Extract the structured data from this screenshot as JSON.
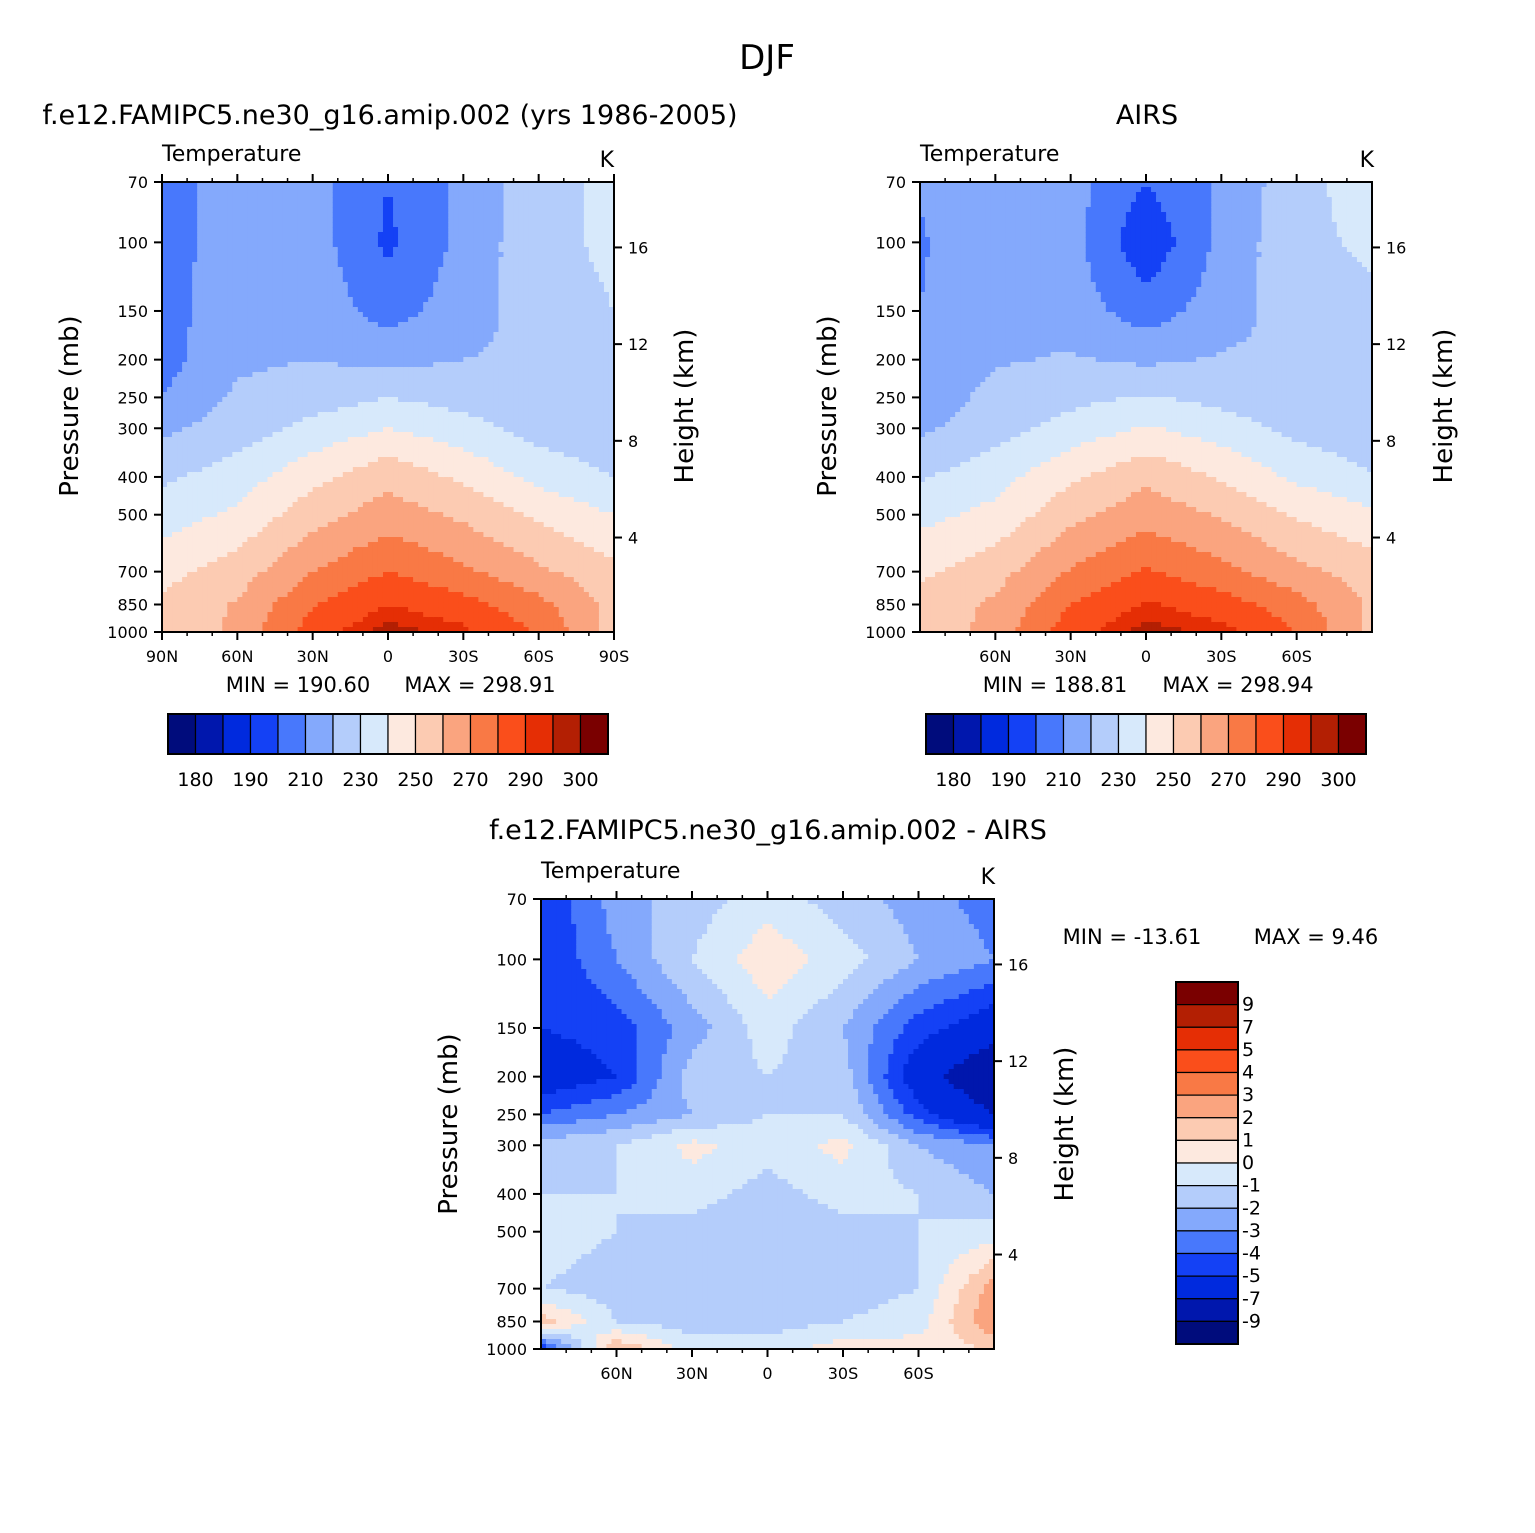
{
  "figure": {
    "title": "DJF",
    "colors": {
      "temperature_scale": [
        "#000c7c",
        "#0017ad",
        "#002ade",
        "#1441f5",
        "#4878fc",
        "#84a9fc",
        "#b4cdfb",
        "#d7e9fb",
        "#fde9df",
        "#fccbb2",
        "#faa47f",
        "#f97945",
        "#fa4e1b",
        "#e52e05",
        "#b31f03",
        "#7a0000"
      ],
      "difference_scale": [
        "#000c7c",
        "#0017ad",
        "#002ade",
        "#1441f5",
        "#4878fc",
        "#84a9fc",
        "#b4cdfb",
        "#d7e9fb",
        "#fde9df",
        "#fccbb2",
        "#faa47f",
        "#f97945",
        "#fa4e1b",
        "#e52e05",
        "#b31f03",
        "#7a0000"
      ]
    }
  },
  "chart_data": [
    {
      "id": "model",
      "type": "heatmap",
      "title": "f.e12.FAMIPC5.ne30_g16.amip.002 (yrs 1986-2005)",
      "subtitle_left": "Temperature",
      "subtitle_right": "K",
      "ylabel": "Pressure (mb)",
      "ylabel_right": "Height (km)",
      "x_ticks": [
        "90N",
        "60N",
        "30N",
        "0",
        "30S",
        "60S",
        "90S"
      ],
      "y_ticks": [
        "70",
        "100",
        "150",
        "200",
        "250",
        "300",
        "400",
        "500",
        "700",
        "850",
        "1000"
      ],
      "y_right_ticks": [
        "16",
        "12",
        "8",
        "4"
      ],
      "x": [
        90,
        60,
        30,
        0,
        -30,
        -60,
        -90
      ],
      "y": [
        70,
        100,
        150,
        200,
        250,
        300,
        400,
        500,
        700,
        850,
        1000
      ],
      "z": [
        [
          205,
          215,
          213,
          200,
          212,
          227,
          232
        ],
        [
          205,
          216,
          215,
          198,
          213,
          227,
          232
        ],
        [
          205,
          218,
          216,
          206,
          215,
          225,
          230
        ],
        [
          206,
          218,
          220,
          217,
          220,
          222,
          225
        ],
        [
          210,
          222,
          225,
          230,
          226,
          222,
          222
        ],
        [
          218,
          225,
          233,
          240,
          234,
          226,
          222
        ],
        [
          228,
          235,
          247,
          257,
          248,
          237,
          230
        ],
        [
          235,
          242,
          256,
          265,
          258,
          248,
          240
        ],
        [
          247,
          255,
          270,
          280,
          272,
          262,
          253
        ],
        [
          251,
          261,
          279,
          290,
          284,
          273,
          257
        ],
        [
          250,
          263,
          285,
          298,
          292,
          279,
          256
        ]
      ],
      "min_label": "MIN = 190.60",
      "max_label": "MAX = 298.91",
      "colorbar_labels": [
        "180",
        "190",
        "210",
        "230",
        "250",
        "270",
        "290",
        "300"
      ],
      "levels": [
        180,
        185,
        190,
        200,
        210,
        220,
        230,
        240,
        250,
        260,
        270,
        280,
        290,
        295,
        300
      ]
    },
    {
      "id": "airs",
      "type": "heatmap",
      "title": "AIRS",
      "subtitle_left": "Temperature",
      "subtitle_right": "K",
      "ylabel": "Pressure (mb)",
      "ylabel_right": "Height (km)",
      "x_ticks": [
        "60N",
        "30N",
        "0",
        "30S",
        "60S"
      ],
      "y_ticks": [
        "70",
        "100",
        "150",
        "200",
        "250",
        "300",
        "400",
        "500",
        "700",
        "850",
        "1000"
      ],
      "y_right_ticks": [
        "16",
        "12",
        "8",
        "4"
      ],
      "x": [
        90,
        60,
        30,
        0,
        -30,
        -60,
        -90
      ],
      "y": [
        70,
        100,
        150,
        200,
        250,
        300,
        400,
        500,
        700,
        850,
        1000
      ],
      "z": [
        [
          211,
          216,
          214,
          200,
          212,
          226,
          236
        ],
        [
          209,
          217,
          214,
          192,
          213,
          227,
          232
        ],
        [
          210,
          219,
          215,
          205,
          215,
          225,
          228
        ],
        [
          211,
          219,
          221,
          218,
          221,
          222,
          226
        ],
        [
          214,
          223,
          227,
          231,
          227,
          223,
          224
        ],
        [
          218,
          226,
          234,
          241,
          235,
          227,
          223
        ],
        [
          229,
          236,
          248,
          258,
          249,
          238,
          231
        ],
        [
          237,
          243,
          257,
          266,
          259,
          249,
          242
        ],
        [
          248,
          256,
          271,
          281,
          273,
          263,
          255
        ],
        [
          253,
          262,
          280,
          291,
          285,
          274,
          258
        ],
        [
          252,
          264,
          286,
          298,
          293,
          280,
          257
        ]
      ],
      "min_label": "MIN = 188.81",
      "max_label": "MAX = 298.94",
      "colorbar_labels": [
        "180",
        "190",
        "210",
        "230",
        "250",
        "270",
        "290",
        "300"
      ],
      "levels": [
        180,
        185,
        190,
        200,
        210,
        220,
        230,
        240,
        250,
        260,
        270,
        280,
        290,
        295,
        300
      ]
    },
    {
      "id": "diff",
      "type": "heatmap",
      "title": "f.e12.FAMIPC5.ne30_g16.amip.002 - AIRS",
      "subtitle_left": "Temperature",
      "subtitle_right": "K",
      "ylabel": "Pressure (mb)",
      "ylabel_right": "Height (km)",
      "x_ticks": [
        "60N",
        "30N",
        "0",
        "30S",
        "60S"
      ],
      "y_ticks": [
        "70",
        "100",
        "150",
        "200",
        "250",
        "300",
        "400",
        "500",
        "700",
        "850",
        "1000"
      ],
      "y_right_ticks": [
        "16",
        "12",
        "8",
        "4"
      ],
      "x": [
        90,
        60,
        30,
        0,
        -30,
        -60,
        -90
      ],
      "y": [
        70,
        100,
        150,
        200,
        250,
        300,
        400,
        500,
        700,
        850,
        1000
      ],
      "z": [
        [
          -5,
          -2.5,
          -1.5,
          -0.5,
          -1.5,
          -2.5,
          -3.5
        ],
        [
          -5,
          -3.0,
          -1.0,
          0.7,
          -0.5,
          -2.0,
          -3.0
        ],
        [
          -5,
          -4.5,
          -2.5,
          -0.5,
          -2.0,
          -4.5,
          -6.0
        ],
        [
          -6,
          -5.0,
          -1.5,
          -1.0,
          -1.5,
          -6.0,
          -9.0
        ],
        [
          -4,
          -3.0,
          -2.0,
          -1.0,
          -1.0,
          -4.5,
          -7.0
        ],
        [
          -1.5,
          -1.0,
          0.3,
          -0.5,
          0.3,
          -2.0,
          -3.0
        ],
        [
          -1.0,
          -1.0,
          -0.5,
          -1.5,
          -0.5,
          -1.0,
          -2.0
        ],
        [
          -0.5,
          -1.0,
          -1.5,
          -2.0,
          -1.5,
          -1.0,
          -0.5
        ],
        [
          -1.0,
          -1.5,
          -2.0,
          -1.5,
          -1.5,
          -1.0,
          2.5
        ],
        [
          1.5,
          -1.0,
          -1.5,
          -1.5,
          -1.0,
          -0.5,
          3.0
        ],
        [
          -5.0,
          2.0,
          -0.5,
          -0.5,
          0.5,
          0.5,
          1.0
        ]
      ],
      "min_label": "MIN = -13.61",
      "max_label": "MAX = 9.46",
      "colorbar_labels": [
        "9",
        "7",
        "5",
        "4",
        "3",
        "2",
        "1",
        "0",
        "-1",
        "-2",
        "-3",
        "-4",
        "-5",
        "-7",
        "-9"
      ],
      "levels": [
        -9,
        -7,
        -5,
        -4,
        -3,
        -2,
        -1,
        0,
        1,
        2,
        3,
        4,
        5,
        7,
        9
      ]
    }
  ]
}
